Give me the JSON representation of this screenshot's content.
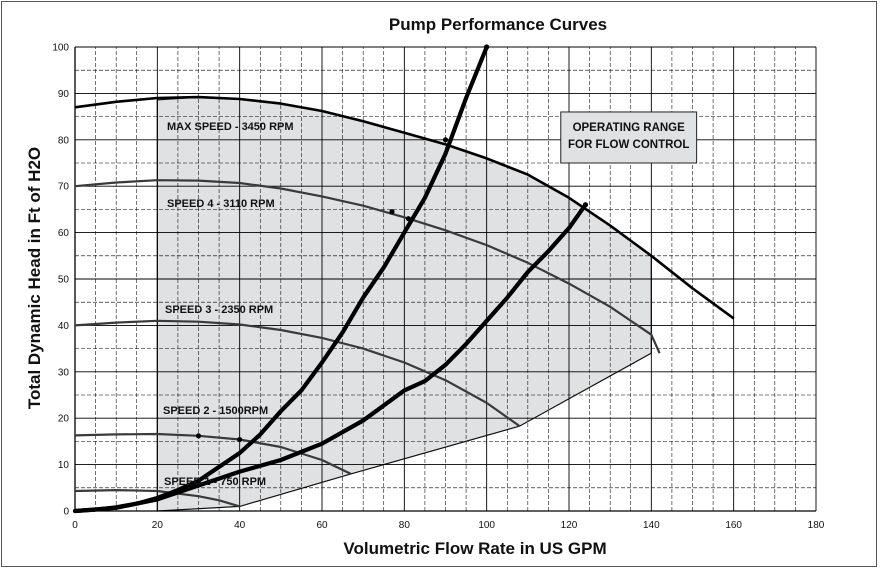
{
  "chart_data": {
    "type": "line",
    "title": "Pump Performance Curves",
    "xlabel": "Volumetric Flow Rate in US GPM",
    "ylabel": "Total Dynamic Head in Ft of H2O",
    "xlim": [
      0,
      180
    ],
    "ylim": [
      0,
      100
    ],
    "x_ticks": [
      0,
      20,
      40,
      60,
      80,
      100,
      120,
      140,
      160,
      180
    ],
    "y_ticks": [
      0,
      10,
      20,
      30,
      40,
      50,
      60,
      70,
      80,
      90,
      100
    ],
    "grid": true,
    "pump_curves": [
      {
        "name": "MAX SPEED - 3450 RPM",
        "points": [
          [
            0,
            87
          ],
          [
            10,
            88.2
          ],
          [
            20,
            89
          ],
          [
            30,
            89.2
          ],
          [
            40,
            88.8
          ],
          [
            50,
            87.8
          ],
          [
            60,
            86.2
          ],
          [
            70,
            84
          ],
          [
            80,
            81.5
          ],
          [
            90,
            79
          ],
          [
            100,
            76
          ],
          [
            110,
            72.5
          ],
          [
            120,
            67.5
          ],
          [
            130,
            61.5
          ],
          [
            140,
            55
          ],
          [
            150,
            48
          ],
          [
            160,
            41.5
          ]
        ]
      },
      {
        "name": "SPEED 4 - 3110 RPM",
        "points": [
          [
            0,
            70
          ],
          [
            10,
            70.8
          ],
          [
            20,
            71.3
          ],
          [
            30,
            71.2
          ],
          [
            40,
            70.7
          ],
          [
            50,
            69.5
          ],
          [
            60,
            67.8
          ],
          [
            70,
            65.8
          ],
          [
            80,
            63.3
          ],
          [
            90,
            60.5
          ],
          [
            100,
            57.3
          ],
          [
            110,
            53.5
          ],
          [
            120,
            49
          ],
          [
            130,
            44
          ],
          [
            140,
            38
          ],
          [
            142,
            34
          ]
        ]
      },
      {
        "name": "SPEED 3 - 2350 RPM",
        "points": [
          [
            0,
            40
          ],
          [
            10,
            40.6
          ],
          [
            20,
            41
          ],
          [
            30,
            40.8
          ],
          [
            40,
            40.2
          ],
          [
            50,
            39
          ],
          [
            60,
            37.3
          ],
          [
            70,
            35
          ],
          [
            80,
            32
          ],
          [
            90,
            28.2
          ],
          [
            100,
            23.3
          ],
          [
            108,
            18.3
          ]
        ]
      },
      {
        "name": "SPEED 2 - 1500RPM",
        "points": [
          [
            0,
            16.3
          ],
          [
            10,
            16.5
          ],
          [
            20,
            16.6
          ],
          [
            30,
            16.2
          ],
          [
            40,
            15.4
          ],
          [
            50,
            13.8
          ],
          [
            60,
            11
          ],
          [
            67,
            8
          ]
        ]
      },
      {
        "name": "SPEED 1 - 750 RPM",
        "points": [
          [
            0,
            4.3
          ],
          [
            10,
            4.5
          ],
          [
            20,
            4.3
          ],
          [
            30,
            3.2
          ],
          [
            35,
            2.3
          ],
          [
            40,
            1
          ]
        ]
      }
    ],
    "system_curves": [
      {
        "points": [
          [
            0,
            0
          ],
          [
            5,
            0.3
          ],
          [
            10,
            0.8
          ],
          [
            15,
            1.6
          ],
          [
            20,
            2.8
          ],
          [
            25,
            4.5
          ],
          [
            30,
            6.5
          ],
          [
            35,
            9.5
          ],
          [
            40,
            12.5
          ],
          [
            45,
            16.5
          ],
          [
            50,
            21.5
          ],
          [
            55,
            26
          ],
          [
            60,
            32
          ],
          [
            65,
            38.5
          ],
          [
            70,
            46
          ],
          [
            75,
            52.5
          ],
          [
            80,
            60
          ],
          [
            85,
            67.5
          ],
          [
            90,
            77
          ],
          [
            95,
            89
          ],
          [
            100,
            100
          ]
        ]
      },
      {
        "points": [
          [
            0,
            0
          ],
          [
            10,
            0.7
          ],
          [
            20,
            2.5
          ],
          [
            30,
            5.5
          ],
          [
            40,
            8.5
          ],
          [
            50,
            11
          ],
          [
            60,
            14.5
          ],
          [
            70,
            19.5
          ],
          [
            80,
            26
          ],
          [
            85,
            28
          ],
          [
            90,
            31.5
          ],
          [
            95,
            36
          ],
          [
            100,
            41
          ],
          [
            105,
            46
          ],
          [
            110,
            51.5
          ],
          [
            115,
            56
          ],
          [
            120,
            61
          ],
          [
            124,
            66
          ]
        ]
      }
    ],
    "operating_range_region": [
      [
        20,
        0
      ],
      [
        20,
        88.6
      ],
      [
        30,
        89.2
      ],
      [
        40,
        88.8
      ],
      [
        50,
        87.8
      ],
      [
        60,
        86.2
      ],
      [
        70,
        84
      ],
      [
        80,
        81.5
      ],
      [
        90,
        79
      ],
      [
        100,
        76
      ],
      [
        110,
        72.5
      ],
      [
        120,
        67.5
      ],
      [
        130,
        61.5
      ],
      [
        140,
        55
      ],
      [
        140,
        34
      ],
      [
        108,
        18.3
      ],
      [
        67,
        8
      ],
      [
        40,
        1
      ]
    ],
    "annotation_box": {
      "lines": [
        "OPERATING RANGE",
        "FOR FLOW CONTROL"
      ],
      "x_range": [
        118,
        151
      ],
      "y_range": [
        75,
        86
      ]
    },
    "colors": {
      "curve": "#000000",
      "region_fill": "#e0e1e3",
      "grid": "#000000",
      "inner_curve": "#3a3a3a"
    }
  }
}
